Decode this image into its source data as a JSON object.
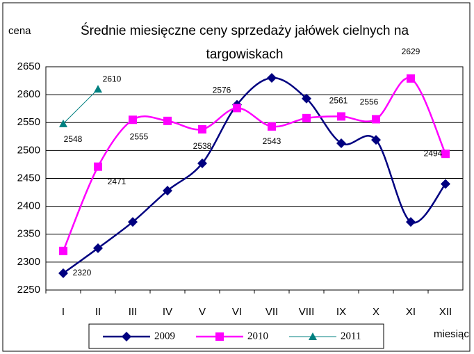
{
  "chart_data": {
    "type": "line",
    "title": "Średnie miesięczne ceny sprzedaży jałówek cielnych na targowiskach",
    "y_label": "cena",
    "x_label": "miesiąc",
    "categories": [
      "I",
      "II",
      "III",
      "IV",
      "V",
      "VI",
      "VII",
      "VIII",
      "IX",
      "X",
      "XI",
      "XII"
    ],
    "ylim": [
      2250,
      2650
    ],
    "yticks": [
      2250,
      2300,
      2350,
      2400,
      2450,
      2500,
      2550,
      2600,
      2650
    ],
    "grid": true,
    "series": [
      {
        "name": "2009",
        "color": "#000080",
        "marker": "diamond",
        "values": [
          2280,
          2325,
          2372,
          2428,
          2477,
          2582,
          2630,
          2593,
          2513,
          2519,
          2372,
          2440
        ]
      },
      {
        "name": "2010",
        "color": "#ff00ff",
        "marker": "square",
        "values": [
          2320,
          2471,
          2555,
          2553,
          2538,
          2576,
          2543,
          2558,
          2561,
          2556,
          2629,
          2494
        ],
        "value_labels": [
          "2320",
          "2471",
          "2555",
          null,
          "2538",
          "2576",
          "2543",
          null,
          "2561",
          "2556",
          "2629",
          "2494"
        ]
      },
      {
        "name": "2011",
        "color": "#008080",
        "marker": "triangle",
        "values": [
          2548,
          2610,
          null,
          null,
          null,
          null,
          null,
          null,
          null,
          null,
          null,
          null
        ],
        "value_labels": [
          "2548",
          "2610",
          null,
          null,
          null,
          null,
          null,
          null,
          null,
          null,
          null,
          null
        ]
      }
    ]
  }
}
